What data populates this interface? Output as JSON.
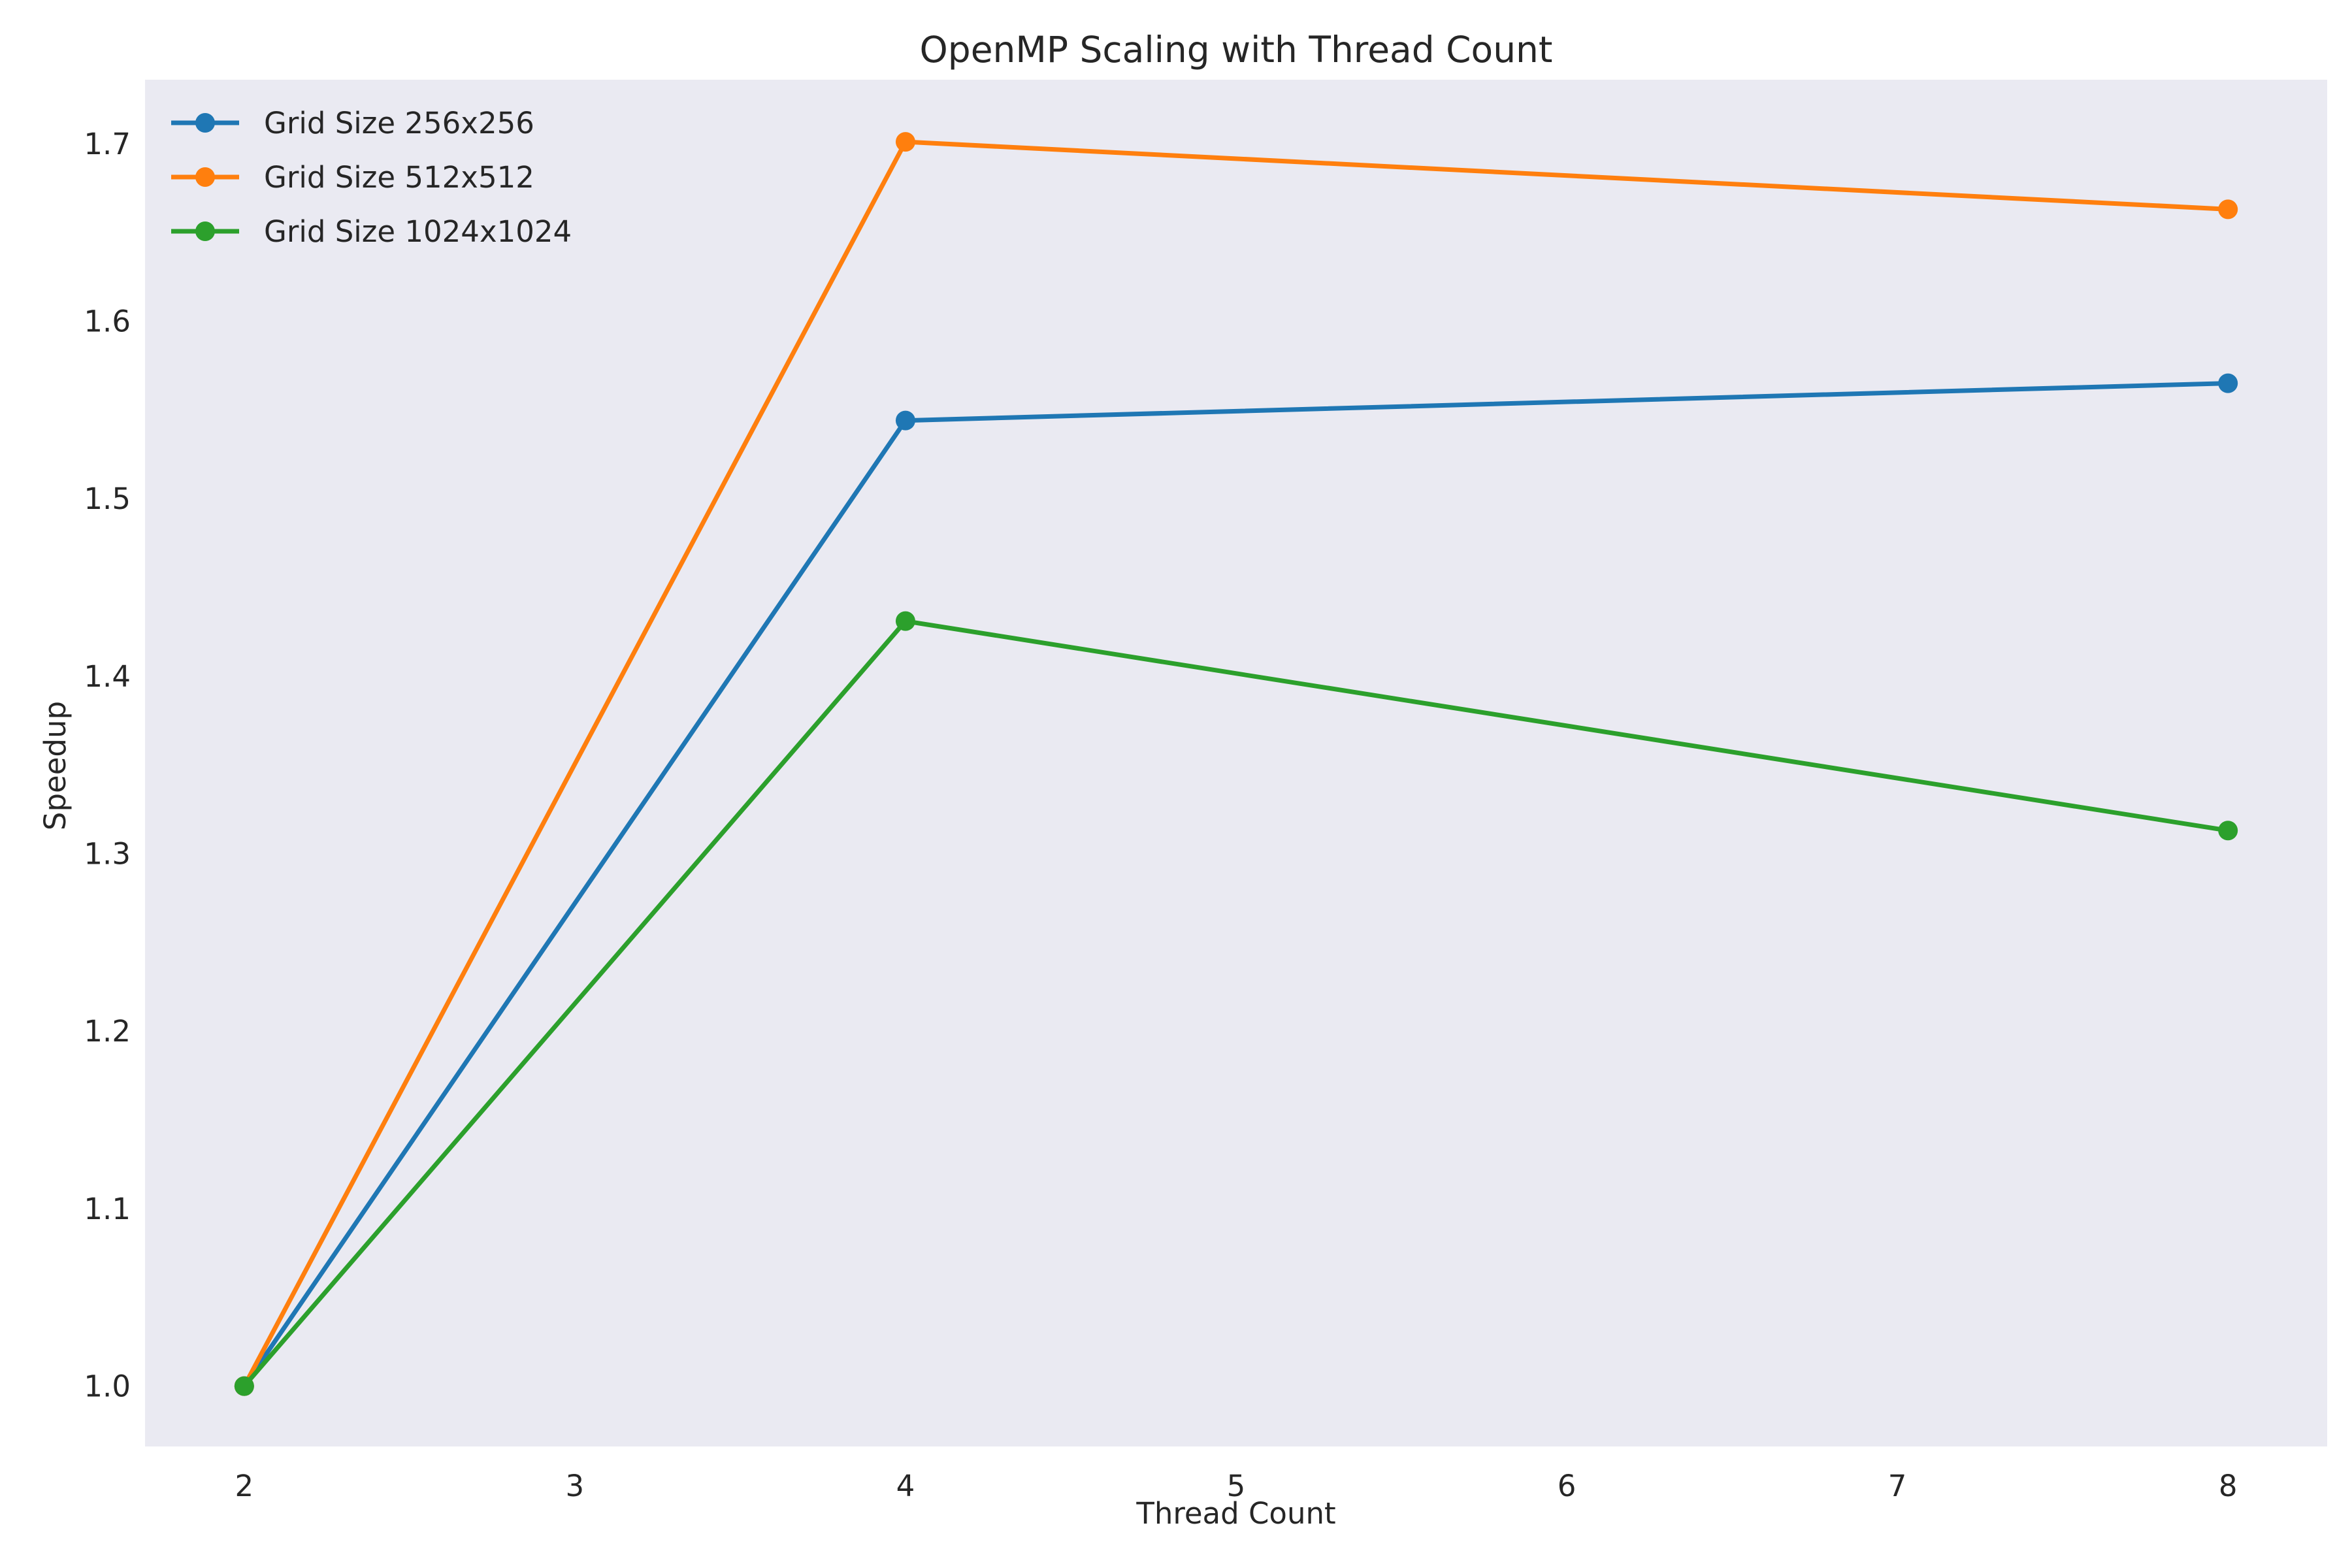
{
  "chart_data": {
    "type": "line",
    "title": "OpenMP Scaling with Thread Count",
    "xlabel": "Thread Count",
    "ylabel": "Speedup",
    "x": [
      2,
      4,
      8
    ],
    "xlim": [
      1.7,
      8.3
    ],
    "ylim": [
      0.966,
      1.736
    ],
    "xticks": [
      2,
      3,
      4,
      5,
      6,
      7,
      8
    ],
    "yticks": [
      1.0,
      1.1,
      1.2,
      1.3,
      1.4,
      1.5,
      1.6,
      1.7
    ],
    "grid": false,
    "legend_position": "top-left",
    "background_color": "#eaeaf2",
    "series": [
      {
        "name": "Grid Size 256x256",
        "color": "#1f77b4",
        "marker": "circle",
        "values": [
          1.0,
          1.544,
          1.565
        ]
      },
      {
        "name": "Grid Size 512x512",
        "color": "#ff7f0e",
        "marker": "circle",
        "values": [
          1.0,
          1.701,
          1.663
        ]
      },
      {
        "name": "Grid Size 1024x1024",
        "color": "#2ca02c",
        "marker": "circle",
        "values": [
          1.0,
          1.431,
          1.313
        ]
      }
    ]
  }
}
